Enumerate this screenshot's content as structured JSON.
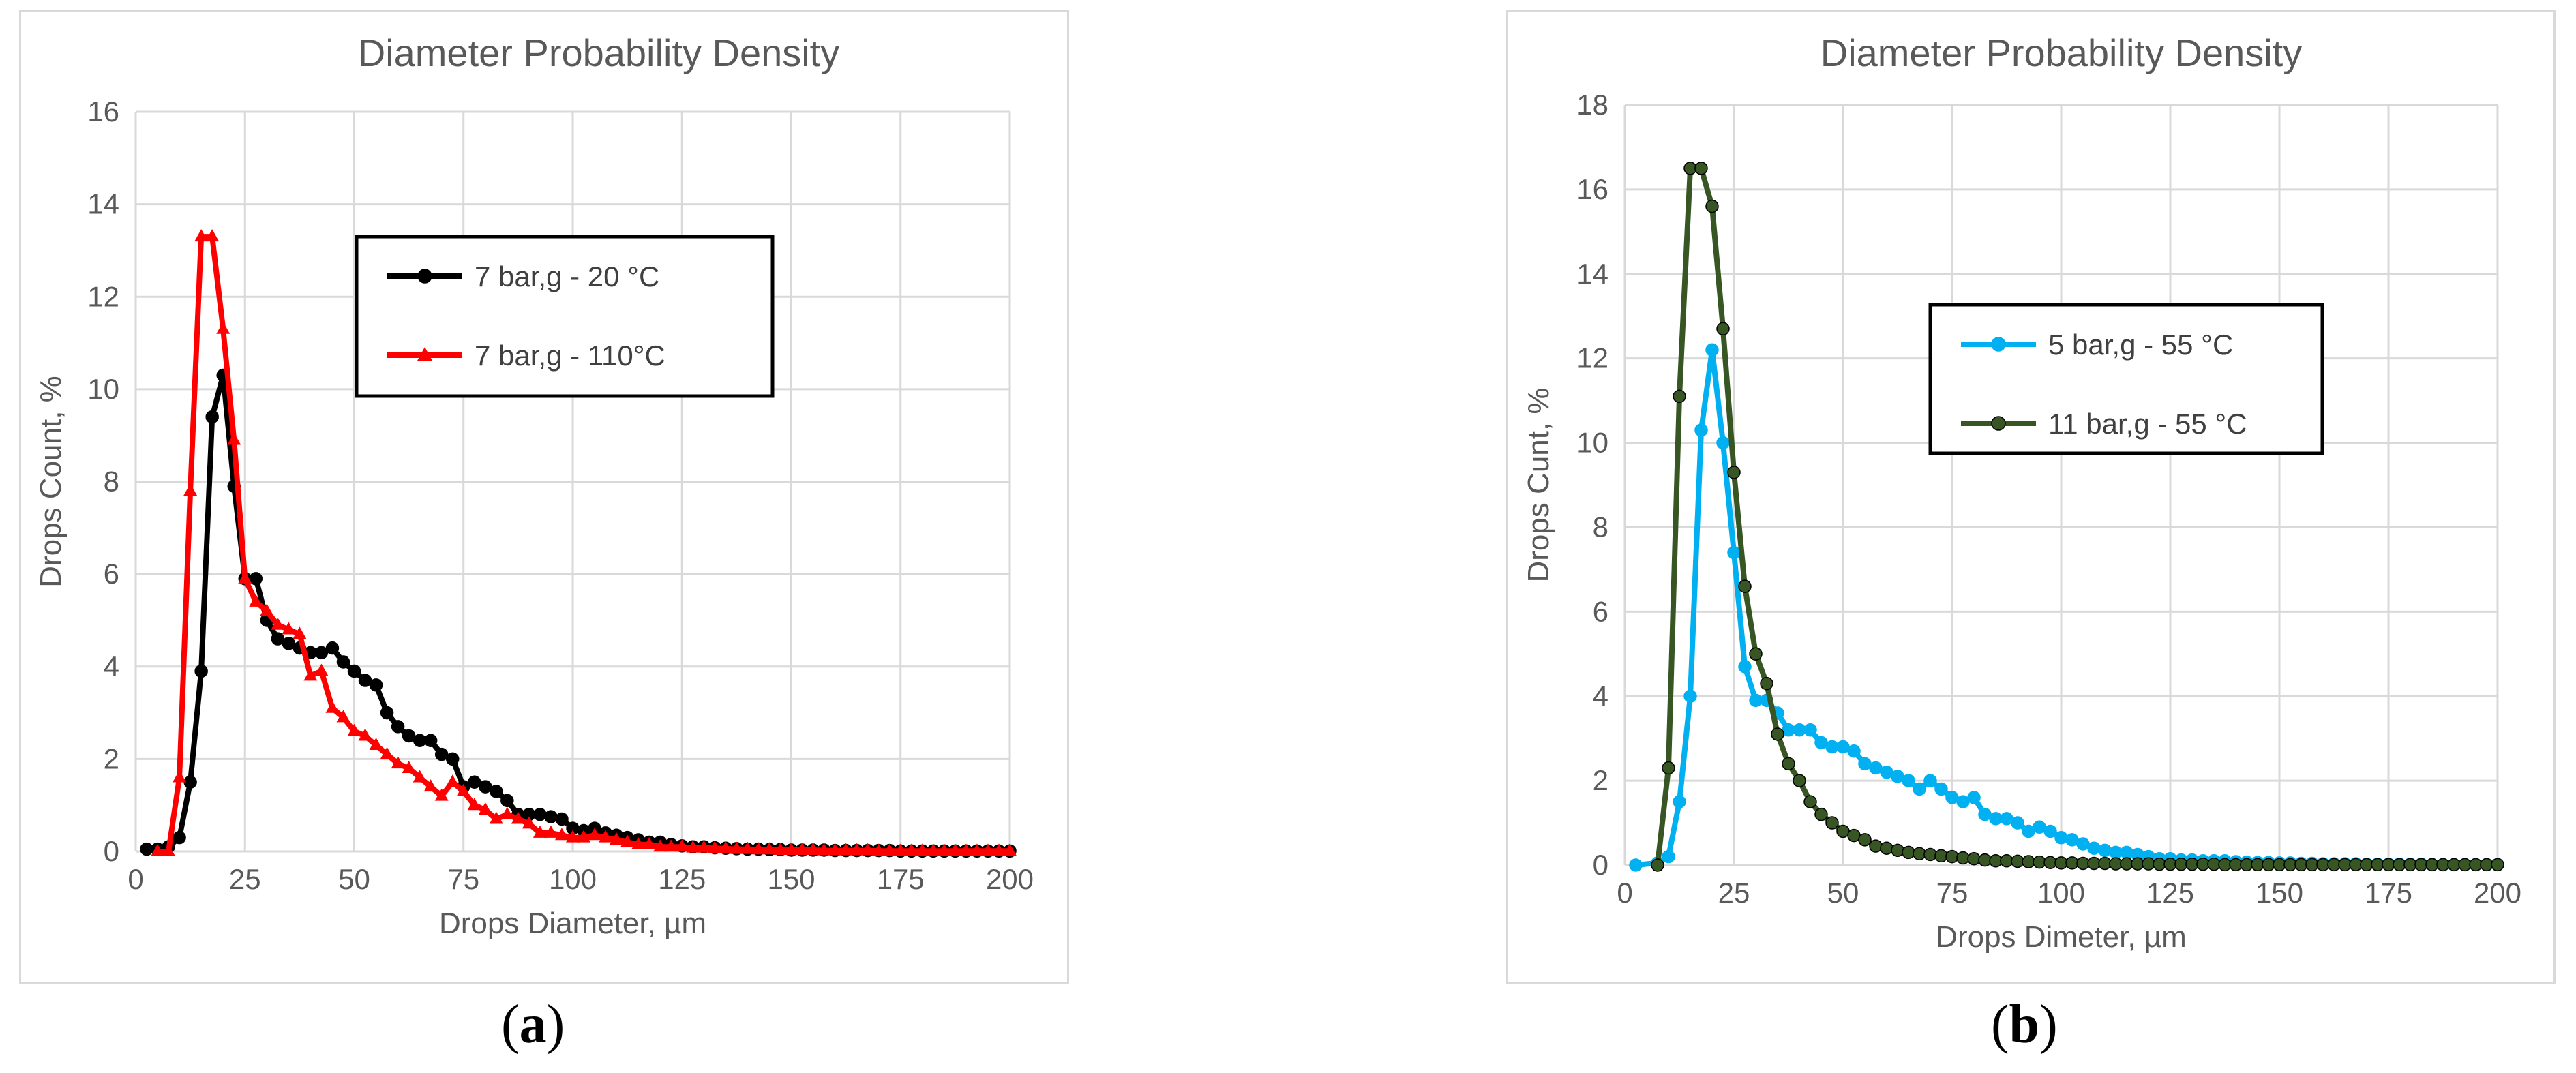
{
  "chart_data": [
    {
      "type": "line",
      "panel": "a",
      "title": "Diameter Probability Density",
      "xlabel": "Drops Diameter, µm",
      "ylabel": "Drops Count, %",
      "xlim": [
        0,
        200
      ],
      "ylim": [
        0,
        16
      ],
      "xticks": [
        0,
        25,
        50,
        75,
        100,
        125,
        150,
        175,
        200
      ],
      "yticks": [
        0,
        2,
        4,
        6,
        8,
        10,
        12,
        14,
        16
      ],
      "grid": true,
      "legend_position": "top-center",
      "series": [
        {
          "name": "7 bar,g - 20 °C",
          "color": "#000000",
          "marker": "circle",
          "x": [
            2.5,
            5,
            7.5,
            10,
            12.5,
            15,
            17.5,
            20,
            22.5,
            25,
            27.5,
            30,
            32.5,
            35,
            37.5,
            40,
            42.5,
            45,
            47.5,
            50,
            52.5,
            55,
            57.5,
            60,
            62.5,
            65,
            67.5,
            70,
            72.5,
            75,
            77.5,
            80,
            82.5,
            85,
            87.5,
            90,
            92.5,
            95,
            97.5,
            100,
            102.5,
            105,
            107.5,
            110,
            112.5,
            115,
            117.5,
            120,
            122.5,
            125,
            127.5,
            130,
            132.5,
            135,
            137.5,
            140,
            142.5,
            145,
            147.5,
            150,
            152.5,
            155,
            157.5,
            160,
            162.5,
            165,
            167.5,
            170,
            172.5,
            175,
            177.5,
            180,
            182.5,
            185,
            187.5,
            190,
            192.5,
            195,
            197.5,
            200
          ],
          "values": [
            0.05,
            0.05,
            0.1,
            0.3,
            1.5,
            3.9,
            9.4,
            10.3,
            7.9,
            5.9,
            5.9,
            5.0,
            4.6,
            4.5,
            4.4,
            4.3,
            4.3,
            4.4,
            4.1,
            3.9,
            3.7,
            3.6,
            3.0,
            2.7,
            2.5,
            2.4,
            2.4,
            2.1,
            2.0,
            1.4,
            1.5,
            1.4,
            1.3,
            1.1,
            0.8,
            0.8,
            0.8,
            0.75,
            0.7,
            0.5,
            0.45,
            0.5,
            0.4,
            0.35,
            0.3,
            0.25,
            0.2,
            0.2,
            0.15,
            0.12,
            0.1,
            0.1,
            0.08,
            0.07,
            0.06,
            0.05,
            0.05,
            0.04,
            0.04,
            0.03,
            0.03,
            0.03,
            0.03,
            0.02,
            0.02,
            0.02,
            0.02,
            0.02,
            0.02,
            0.01,
            0.01,
            0.01,
            0.01,
            0.01,
            0.01,
            0.01,
            0.01,
            0.01,
            0.01,
            0.01
          ]
        },
        {
          "name": "7 bar,g - 110°C",
          "color": "#ff0000",
          "marker": "triangle",
          "x": [
            5,
            7.5,
            10,
            12.5,
            15,
            17.5,
            20,
            22.5,
            25,
            27.5,
            30,
            32.5,
            35,
            37.5,
            40,
            42.5,
            45,
            47.5,
            50,
            52.5,
            55,
            57.5,
            60,
            62.5,
            65,
            67.5,
            70,
            72.5,
            75,
            77.5,
            80,
            82.5,
            85,
            87.5,
            90,
            92.5,
            95,
            97.5,
            100,
            102.5,
            105,
            107.5,
            110,
            112.5,
            115,
            117.5,
            120,
            122.5,
            125,
            127.5,
            130,
            132.5,
            135,
            137.5,
            140,
            142.5,
            145,
            147.5,
            150,
            152.5,
            155,
            157.5,
            160,
            162.5,
            165,
            167.5,
            170,
            172.5,
            175,
            177.5,
            180,
            182.5,
            185,
            187.5,
            190,
            192.5,
            195,
            197.5,
            200
          ],
          "values": [
            0.0,
            0.0,
            1.6,
            7.8,
            13.3,
            13.3,
            11.3,
            8.9,
            5.9,
            5.4,
            5.2,
            4.9,
            4.8,
            4.7,
            3.8,
            3.9,
            3.1,
            2.9,
            2.6,
            2.5,
            2.3,
            2.1,
            1.9,
            1.8,
            1.6,
            1.4,
            1.2,
            1.5,
            1.3,
            1.0,
            0.9,
            0.7,
            0.8,
            0.7,
            0.6,
            0.4,
            0.4,
            0.35,
            0.3,
            0.3,
            0.35,
            0.3,
            0.25,
            0.2,
            0.15,
            0.15,
            0.1,
            0.1,
            0.1,
            0.08,
            0.08,
            0.07,
            0.06,
            0.05,
            0.05,
            0.04,
            0.04,
            0.03,
            0.03,
            0.03,
            0.03,
            0.02,
            0.02,
            0.02,
            0.02,
            0.02,
            0.01,
            0.01,
            0.01,
            0.01,
            0.01,
            0.01,
            0.01,
            0.01,
            0.01,
            0.01,
            0.01,
            0.01,
            0.01
          ]
        }
      ]
    },
    {
      "type": "line",
      "panel": "b",
      "title": "Diameter Probability Density",
      "xlabel": "Drops Dimeter, µm",
      "ylabel": "Drops Cunt, %",
      "xlim": [
        0,
        200
      ],
      "ylim": [
        0,
        18
      ],
      "xticks": [
        0,
        25,
        50,
        75,
        100,
        125,
        150,
        175,
        200
      ],
      "yticks": [
        0,
        2,
        4,
        6,
        8,
        10,
        12,
        14,
        16,
        18
      ],
      "grid": true,
      "legend_position": "center-right",
      "series": [
        {
          "name": "5 bar,g - 55 °C",
          "color": "#00b0f0",
          "marker": "circle",
          "x": [
            2.5,
            7.5,
            10,
            12.5,
            15,
            17.5,
            20,
            22.5,
            25,
            27.5,
            30,
            32.5,
            35,
            37.5,
            40,
            42.5,
            45,
            47.5,
            50,
            52.5,
            55,
            57.5,
            60,
            62.5,
            65,
            67.5,
            70,
            72.5,
            75,
            77.5,
            80,
            82.5,
            85,
            87.5,
            90,
            92.5,
            95,
            97.5,
            100,
            102.5,
            105,
            107.5,
            110,
            112.5,
            115,
            117.5,
            120,
            122.5,
            125,
            127.5,
            130,
            132.5,
            135,
            137.5,
            140,
            142.5,
            145,
            147.5,
            150,
            152.5,
            155,
            157.5,
            160,
            162.5,
            165,
            167.5,
            170,
            172.5,
            175,
            177.5,
            180,
            182.5,
            185,
            187.5,
            190,
            192.5,
            195,
            197.5,
            200
          ],
          "values": [
            0.0,
            0.05,
            0.2,
            1.5,
            4.0,
            10.3,
            12.2,
            10.0,
            7.4,
            4.7,
            3.9,
            3.9,
            3.6,
            3.2,
            3.2,
            3.2,
            2.9,
            2.8,
            2.8,
            2.7,
            2.4,
            2.3,
            2.2,
            2.1,
            2.0,
            1.8,
            2.0,
            1.8,
            1.6,
            1.5,
            1.6,
            1.2,
            1.1,
            1.1,
            1.0,
            0.8,
            0.9,
            0.8,
            0.65,
            0.6,
            0.5,
            0.4,
            0.35,
            0.3,
            0.3,
            0.25,
            0.2,
            0.15,
            0.15,
            0.12,
            0.12,
            0.1,
            0.1,
            0.1,
            0.08,
            0.07,
            0.06,
            0.06,
            0.05,
            0.05,
            0.04,
            0.04,
            0.03,
            0.03,
            0.03,
            0.03,
            0.02,
            0.02,
            0.02,
            0.02,
            0.02,
            0.02,
            0.01,
            0.01,
            0.01,
            0.01,
            0.01,
            0.01,
            0.01
          ]
        },
        {
          "name": "11 bar,g - 55 °C",
          "color": "#375623",
          "marker": "circle",
          "x": [
            7.5,
            10,
            12.5,
            15,
            17.5,
            20,
            22.5,
            25,
            27.5,
            30,
            32.5,
            35,
            37.5,
            40,
            42.5,
            45,
            47.5,
            50,
            52.5,
            55,
            57.5,
            60,
            62.5,
            65,
            67.5,
            70,
            72.5,
            75,
            77.5,
            80,
            82.5,
            85,
            87.5,
            90,
            92.5,
            95,
            97.5,
            100,
            102.5,
            105,
            107.5,
            110,
            112.5,
            115,
            117.5,
            120,
            122.5,
            125,
            127.5,
            130,
            132.5,
            135,
            137.5,
            140,
            142.5,
            145,
            147.5,
            150,
            152.5,
            155,
            157.5,
            160,
            162.5,
            165,
            167.5,
            170,
            172.5,
            175,
            177.5,
            180,
            182.5,
            185,
            187.5,
            190,
            192.5,
            195,
            197.5,
            200
          ],
          "values": [
            0.0,
            2.3,
            11.1,
            16.5,
            16.5,
            15.6,
            12.7,
            9.3,
            6.6,
            5.0,
            4.3,
            3.1,
            2.4,
            2.0,
            1.5,
            1.2,
            1.0,
            0.8,
            0.7,
            0.6,
            0.45,
            0.4,
            0.35,
            0.3,
            0.27,
            0.25,
            0.22,
            0.2,
            0.17,
            0.15,
            0.12,
            0.1,
            0.1,
            0.09,
            0.08,
            0.07,
            0.06,
            0.05,
            0.05,
            0.04,
            0.04,
            0.04,
            0.03,
            0.03,
            0.03,
            0.03,
            0.02,
            0.02,
            0.02,
            0.02,
            0.02,
            0.02,
            0.01,
            0.01,
            0.01,
            0.01,
            0.01,
            0.01,
            0.01,
            0.01,
            0.01,
            0.01,
            0.01,
            0.01,
            0.01,
            0.01,
            0.01,
            0.01,
            0.01,
            0.01,
            0.01,
            0.01,
            0.01,
            0.01,
            0.01,
            0.01,
            0.01,
            0.01
          ]
        }
      ]
    }
  ],
  "captions": [
    {
      "open": "(",
      "letter": "a",
      "close": ")"
    },
    {
      "open": "(",
      "letter": "b",
      "close": ")"
    }
  ]
}
